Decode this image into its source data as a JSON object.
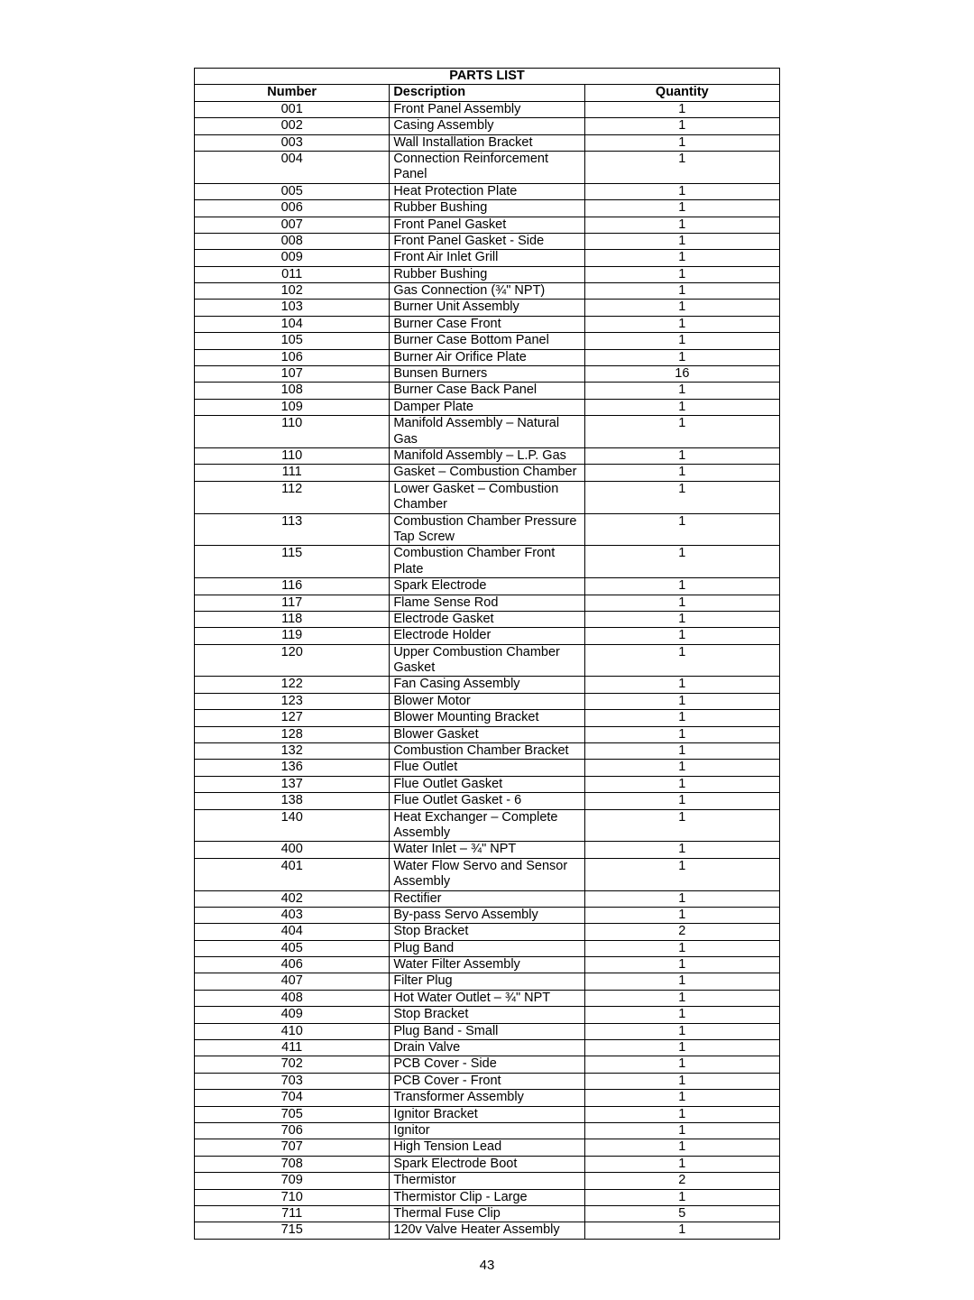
{
  "table": {
    "title": "PARTS LIST",
    "headers": {
      "number": "Number",
      "description": "Description",
      "quantity": "Quantity"
    },
    "rows": [
      {
        "num": "001",
        "desc": "Front Panel Assembly",
        "qty": "1"
      },
      {
        "num": "002",
        "desc": "Casing Assembly",
        "qty": "1"
      },
      {
        "num": "003",
        "desc": "Wall Installation Bracket",
        "qty": "1"
      },
      {
        "num": "004",
        "desc": "Connection Reinforcement Panel",
        "qty": "1"
      },
      {
        "num": "005",
        "desc": "Heat Protection Plate",
        "qty": "1"
      },
      {
        "num": "006",
        "desc": "Rubber Bushing",
        "qty": "1"
      },
      {
        "num": "007",
        "desc": "Front Panel Gasket",
        "qty": "1"
      },
      {
        "num": "008",
        "desc": "Front Panel Gasket - Side",
        "qty": "1"
      },
      {
        "num": "009",
        "desc": "Front Air Inlet Grill",
        "qty": "1"
      },
      {
        "num": "011",
        "desc": "Rubber Bushing",
        "qty": "1"
      },
      {
        "num": "102",
        "desc": "Gas Connection (¾\" NPT)",
        "qty": "1"
      },
      {
        "num": "103",
        "desc": "Burner Unit Assembly",
        "qty": "1"
      },
      {
        "num": "104",
        "desc": "Burner Case Front",
        "qty": "1"
      },
      {
        "num": "105",
        "desc": "Burner Case Bottom Panel",
        "qty": "1"
      },
      {
        "num": "106",
        "desc": "Burner Air Orifice Plate",
        "qty": "1"
      },
      {
        "num": "107",
        "desc": "Bunsen Burners",
        "qty": "16"
      },
      {
        "num": "108",
        "desc": "Burner Case Back Panel",
        "qty": "1"
      },
      {
        "num": "109",
        "desc": "Damper Plate",
        "qty": "1"
      },
      {
        "num": "110",
        "desc": "Manifold Assembly – Natural Gas",
        "qty": "1"
      },
      {
        "num": "110",
        "desc": "Manifold Assembly – L.P. Gas",
        "qty": "1"
      },
      {
        "num": "111",
        "desc": "Gasket – Combustion Chamber",
        "qty": "1"
      },
      {
        "num": "112",
        "desc": "Lower Gasket – Combustion Chamber",
        "qty": "1"
      },
      {
        "num": "113",
        "desc": "Combustion Chamber Pressure Tap Screw",
        "qty": "1"
      },
      {
        "num": "115",
        "desc": "Combustion Chamber Front Plate",
        "qty": "1"
      },
      {
        "num": "116",
        "desc": "Spark Electrode",
        "qty": "1"
      },
      {
        "num": "117",
        "desc": "Flame Sense Rod",
        "qty": "1"
      },
      {
        "num": "118",
        "desc": "Electrode Gasket",
        "qty": "1"
      },
      {
        "num": "119",
        "desc": "Electrode Holder",
        "qty": "1"
      },
      {
        "num": "120",
        "desc": "Upper Combustion Chamber Gasket",
        "qty": "1"
      },
      {
        "num": "122",
        "desc": "Fan Casing Assembly",
        "qty": "1"
      },
      {
        "num": "123",
        "desc": "Blower Motor",
        "qty": "1"
      },
      {
        "num": "127",
        "desc": "Blower Mounting Bracket",
        "qty": "1"
      },
      {
        "num": "128",
        "desc": "Blower Gasket",
        "qty": "1"
      },
      {
        "num": "132",
        "desc": "Combustion Chamber Bracket",
        "qty": "1"
      },
      {
        "num": "136",
        "desc": "Flue Outlet",
        "qty": "1"
      },
      {
        "num": "137",
        "desc": "Flue Outlet Gasket",
        "qty": "1"
      },
      {
        "num": "138",
        "desc": "Flue Outlet Gasket - 6",
        "qty": "1"
      },
      {
        "num": "140",
        "desc": "Heat Exchanger – Complete Assembly",
        "qty": "1"
      },
      {
        "num": "400",
        "desc": "Water Inlet – ¾\" NPT",
        "qty": "1"
      },
      {
        "num": "401",
        "desc": "Water Flow Servo and Sensor Assembly",
        "qty": "1"
      },
      {
        "num": "402",
        "desc": "Rectifier",
        "qty": "1"
      },
      {
        "num": "403",
        "desc": "By-pass Servo Assembly",
        "qty": "1"
      },
      {
        "num": "404",
        "desc": "Stop Bracket",
        "qty": "2"
      },
      {
        "num": "405",
        "desc": "Plug Band",
        "qty": "1"
      },
      {
        "num": "406",
        "desc": "Water Filter Assembly",
        "qty": "1"
      },
      {
        "num": "407",
        "desc": "Filter Plug",
        "qty": "1"
      },
      {
        "num": "408",
        "desc": "Hot Water Outlet – ¾\" NPT",
        "qty": "1"
      },
      {
        "num": "409",
        "desc": "Stop Bracket",
        "qty": "1"
      },
      {
        "num": "410",
        "desc": "Plug Band - Small",
        "qty": "1"
      },
      {
        "num": "411",
        "desc": "Drain Valve",
        "qty": "1"
      },
      {
        "num": "702",
        "desc": "PCB Cover - Side",
        "qty": "1"
      },
      {
        "num": "703",
        "desc": "PCB Cover - Front",
        "qty": "1"
      },
      {
        "num": "704",
        "desc": "Transformer Assembly",
        "qty": "1"
      },
      {
        "num": "705",
        "desc": "Ignitor Bracket",
        "qty": "1"
      },
      {
        "num": "706",
        "desc": "Ignitor",
        "qty": "1"
      },
      {
        "num": "707",
        "desc": "High Tension Lead",
        "qty": "1"
      },
      {
        "num": "708",
        "desc": "Spark Electrode Boot",
        "qty": "1"
      },
      {
        "num": "709",
        "desc": "Thermistor",
        "qty": "2"
      },
      {
        "num": "710",
        "desc": "Thermistor Clip - Large",
        "qty": "1"
      },
      {
        "num": "711",
        "desc": "Thermal Fuse Clip",
        "qty": "5"
      },
      {
        "num": "715",
        "desc": "120v Valve Heater Assembly",
        "qty": "1"
      }
    ]
  },
  "page_number": "43"
}
